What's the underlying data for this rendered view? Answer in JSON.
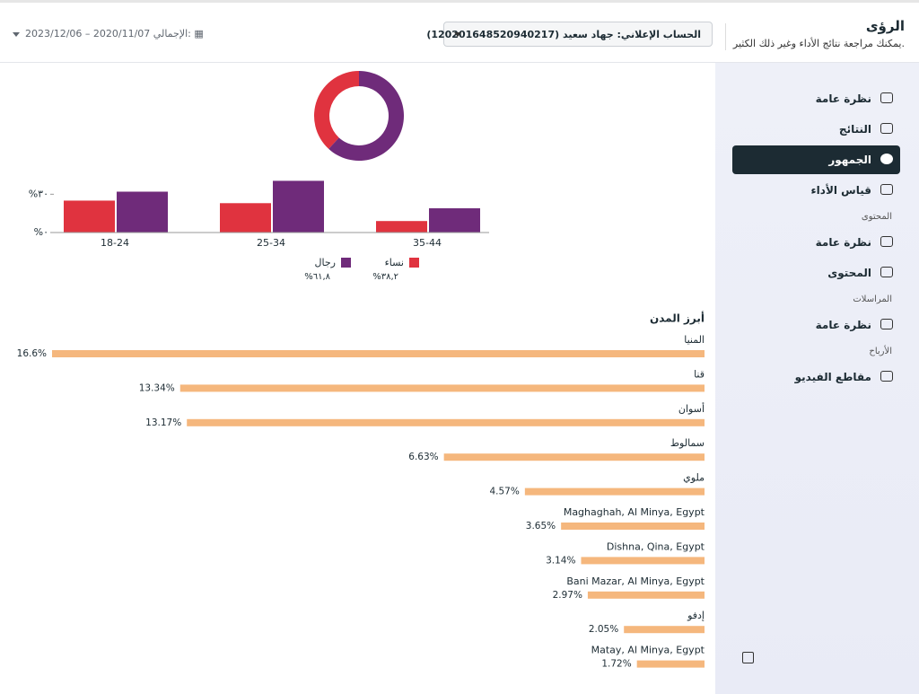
{
  "header": {
    "title": "الرؤى",
    "subtitle": "يمكنك مراجعة نتائج الأداء وغير ذلك الكثير.",
    "account": "الحساب الإعلاني: جهاد سعيد (120201648520940217)",
    "total_label": "الإجمالي:",
    "date_range": "2023/12/06 – 2020/11/07"
  },
  "sidebar": {
    "groups": [
      {
        "items": [
          {
            "label": "نظرة عامة"
          },
          {
            "label": "النتائج"
          },
          {
            "label": "الجمهور",
            "active": true
          },
          {
            "label": "قياس الأداء"
          }
        ]
      },
      {
        "title": "المحتوى",
        "items": [
          {
            "label": "نظرة عامة"
          },
          {
            "label": "المحتوى"
          }
        ]
      },
      {
        "title": "المراسلات",
        "items": [
          {
            "label": "نظرة عامة"
          }
        ]
      },
      {
        "title": "الأرباح",
        "items": [
          {
            "label": "مقاطع الفيديو"
          }
        ]
      }
    ]
  },
  "gender_donut": {
    "type": "pie",
    "values": [
      38.2,
      61.8
    ],
    "value_labels": [
      "%٣٨,٢",
      "%٦١,٨"
    ],
    "colors": [
      "#e0333f",
      "#6f2b7a"
    ]
  },
  "age_gender_bars": {
    "type": "bar",
    "categories": [
      "18-24",
      "25-34",
      "35-44"
    ],
    "series": [
      {
        "name": "نساء",
        "color": "#e0333f",
        "values": [
          25,
          23,
          9
        ]
      },
      {
        "name": "رجال",
        "color": "#6f2b7a",
        "values": [
          32,
          40.5,
          19
        ]
      }
    ],
    "ylim": [
      0,
      45
    ],
    "yticks": [
      {
        "value": 0,
        "label": "%٠"
      },
      {
        "value": 30,
        "label": "%٣٠"
      }
    ]
  },
  "top_cities": {
    "type": "bar",
    "title": "أبرز المدن",
    "categories": [
      "المنيا",
      "قنا",
      "أسوان",
      "سمالوط",
      "ملوي",
      "Maghaghah, Al Minya, Egypt",
      "Dishna, Qina, Egypt",
      "Bani Mazar, Al Minya, Egypt",
      "إدفو",
      "Matay, Al Minya, Egypt"
    ],
    "values": [
      16.6,
      13.34,
      13.17,
      6.63,
      4.57,
      3.65,
      3.14,
      2.97,
      2.05,
      1.72
    ],
    "value_labels": [
      "16.6%",
      "13.34%",
      "13.17%",
      "6.63%",
      "4.57%",
      "3.65%",
      "3.14%",
      "2.97%",
      "2.05%",
      "1.72%"
    ],
    "color": "#f5b77d",
    "xlim": [
      0,
      16.6
    ]
  }
}
